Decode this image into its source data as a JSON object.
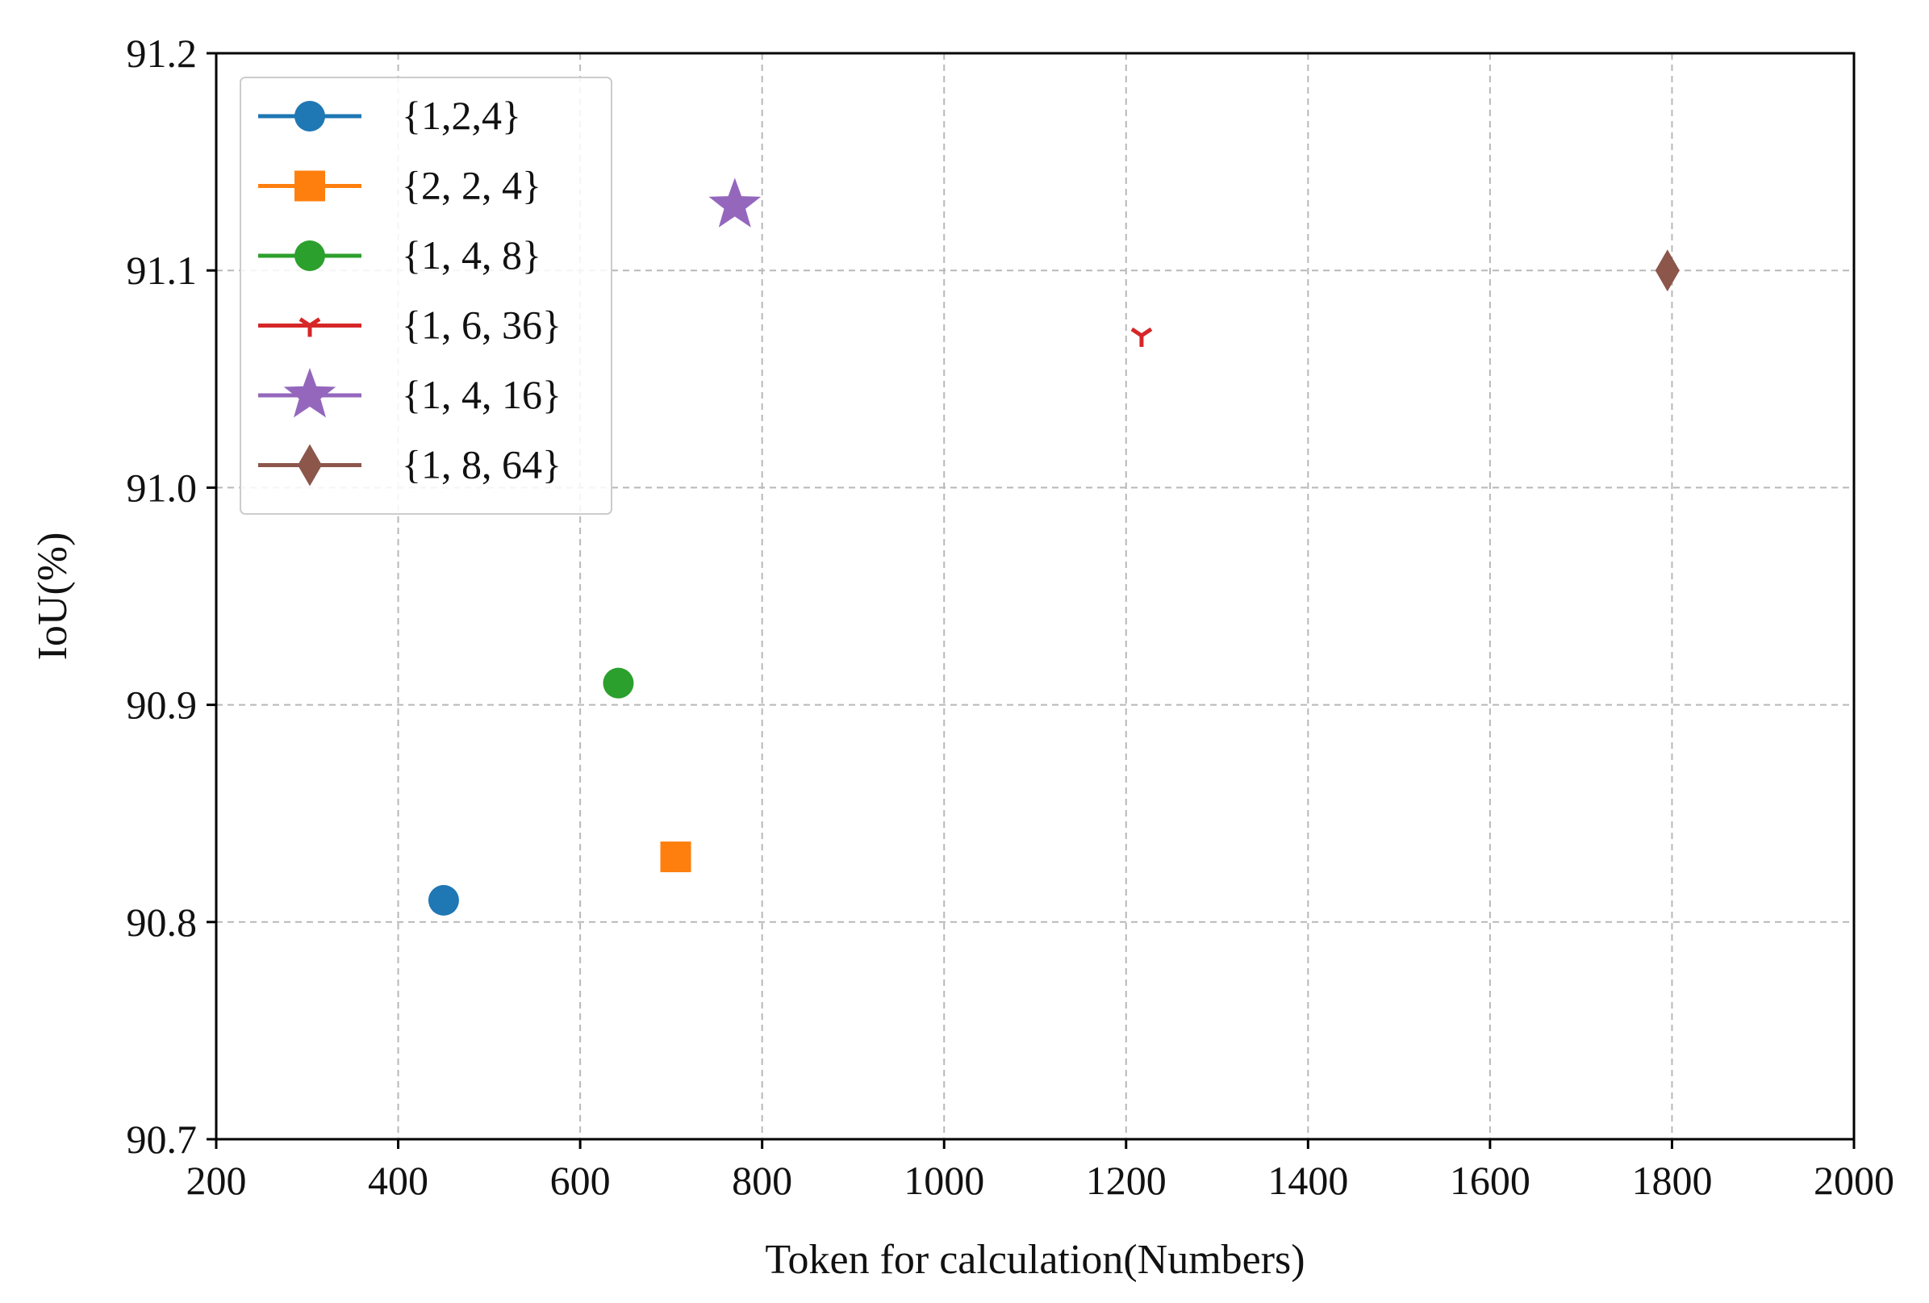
{
  "chart_data": {
    "type": "scatter",
    "title": "",
    "xlabel": "Token for calculation(Numbers)",
    "ylabel": "IoU(%)",
    "xlim": [
      200,
      2000
    ],
    "ylim": [
      90.7,
      91.2
    ],
    "x_ticks": [
      "200",
      "400",
      "600",
      "800",
      "1000",
      "1200",
      "1400",
      "1600",
      "1800",
      "2000"
    ],
    "y_ticks": [
      "90.7",
      "90.8",
      "90.9",
      "91.0",
      "91.1",
      "91.2"
    ],
    "grid": true,
    "legend_position": "top-left",
    "series": [
      {
        "name": "{1,2,4}",
        "x": 450,
        "y": 90.81,
        "marker": "circle",
        "color": "#1f77b4"
      },
      {
        "name": "{2, 2, 4}",
        "x": 705,
        "y": 90.83,
        "marker": "square",
        "color": "#ff7f0e"
      },
      {
        "name": "{1, 4, 8}",
        "x": 642,
        "y": 90.91,
        "marker": "circle",
        "color": "#2ca02c"
      },
      {
        "name": "{1, 6, 36}",
        "x": 1217,
        "y": 91.07,
        "marker": "tri-down",
        "color": "#d62728"
      },
      {
        "name": "{1, 4, 16}",
        "x": 770,
        "y": 91.13,
        "marker": "star",
        "color": "#9467bd"
      },
      {
        "name": "{1, 8, 64}",
        "x": 1795,
        "y": 91.1,
        "marker": "thin-diamond",
        "color": "#8c564b"
      }
    ]
  }
}
